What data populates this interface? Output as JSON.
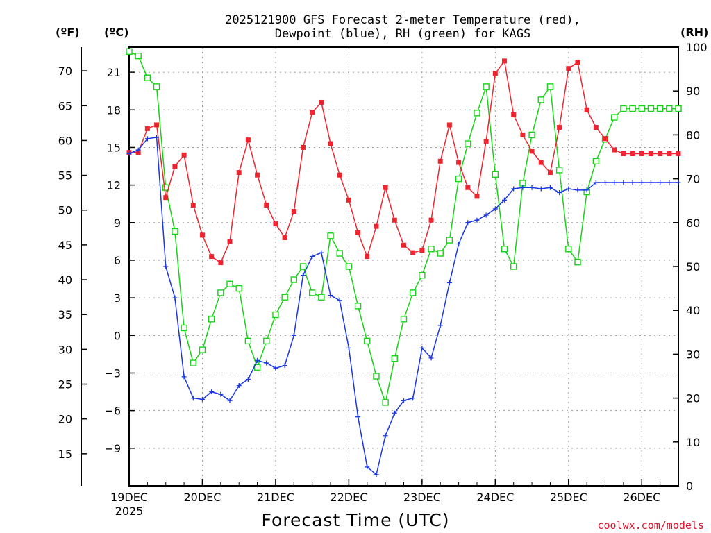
{
  "chart_data": {
    "type": "line",
    "title_line1": "2025121900 GFS Forecast 2-meter Temperature (red),",
    "title_line2": "Dewpoint (blue), RH (green) for KAGS",
    "xlabel": "Forecast Time (UTC)",
    "credit": "coolwx.com/models",
    "units": {
      "fahrenheit": "(ºF)",
      "celsius": "(ºC)",
      "rh": "(RH)"
    },
    "x_ticks": [
      "19DEC",
      "20DEC",
      "21DEC",
      "22DEC",
      "23DEC",
      "24DEC",
      "25DEC",
      "26DEC"
    ],
    "x_year": "2025",
    "xlim_hours": [
      0,
      180
    ],
    "celsius_ticks": [
      "21",
      "18",
      "15",
      "12",
      "9",
      "6",
      "3",
      "0",
      "−3",
      "−6",
      "−9"
    ],
    "fahrenheit_ticks": [
      "70",
      "65",
      "60",
      "55",
      "50",
      "45",
      "40",
      "35",
      "30",
      "25",
      "20",
      "15"
    ],
    "rh_ticks": [
      "100",
      "90",
      "80",
      "70",
      "60",
      "50",
      "40",
      "30",
      "20",
      "10",
      "0"
    ],
    "ylim_celsius": [
      -12,
      23
    ],
    "ylim_rh": [
      0,
      100
    ],
    "colors": {
      "temperature": "#f0242f",
      "dewpoint": "#1a37e6",
      "rh": "#14d414",
      "credit": "#e0102a"
    },
    "series": [
      {
        "name": "2-meter Temperature (°C)",
        "hours": [
          0,
          3,
          6,
          9,
          12,
          15,
          18,
          21,
          24,
          27,
          30,
          33,
          36,
          39,
          42,
          45,
          48,
          51,
          54,
          57,
          60,
          63,
          66,
          69,
          72,
          75,
          78,
          81,
          84,
          87,
          90,
          93,
          96,
          99,
          102,
          105,
          108,
          111,
          114,
          117,
          120,
          123,
          126,
          129,
          132,
          135,
          138,
          141,
          144,
          147,
          150,
          153,
          156,
          159,
          162,
          165,
          168,
          171,
          174,
          177,
          180
        ],
        "values": [
          14.6,
          14.6,
          16.5,
          16.8,
          11.0,
          13.5,
          14.4,
          10.4,
          8.0,
          6.3,
          5.8,
          7.5,
          13.0,
          15.6,
          12.8,
          10.4,
          8.9,
          7.8,
          9.9,
          15.0,
          17.8,
          18.6,
          15.3,
          12.8,
          10.8,
          8.2,
          6.3,
          8.7,
          11.8,
          9.2,
          7.2,
          6.6,
          6.8,
          9.2,
          13.9,
          16.8,
          13.8,
          11.8,
          11.1,
          15.5,
          20.9,
          21.9,
          17.6,
          16.0,
          14.7,
          13.8,
          13.0,
          16.6,
          21.3,
          21.8,
          18.0,
          16.6,
          15.7,
          14.8,
          14.5,
          14.5,
          14.5,
          14.5,
          14.5,
          14.5,
          14.5
        ]
      },
      {
        "name": "Dewpoint (°C)",
        "hours": [
          0,
          3,
          6,
          9,
          12,
          15,
          18,
          21,
          24,
          27,
          30,
          33,
          36,
          39,
          42,
          45,
          48,
          51,
          54,
          57,
          60,
          63,
          66,
          69,
          72,
          75,
          78,
          81,
          84,
          87,
          90,
          93,
          96,
          99,
          102,
          105,
          108,
          111,
          114,
          117,
          120,
          123,
          126,
          129,
          132,
          135,
          138,
          141,
          144,
          147,
          150,
          153,
          156,
          159,
          162,
          165,
          168,
          171,
          174,
          177,
          180
        ],
        "values": [
          14.5,
          14.8,
          15.7,
          15.8,
          5.5,
          3.0,
          -3.3,
          -5.0,
          -5.1,
          -4.5,
          -4.7,
          -5.2,
          -4.0,
          -3.5,
          -2.0,
          -2.2,
          -2.6,
          -2.4,
          0.0,
          4.8,
          6.3,
          6.6,
          3.2,
          2.8,
          -1.0,
          -6.5,
          -10.5,
          -11.1,
          -8.0,
          -6.2,
          -5.2,
          -5.0,
          -1.0,
          -1.8,
          0.8,
          4.2,
          7.3,
          9.0,
          9.2,
          9.6,
          10.1,
          10.8,
          11.7,
          11.8,
          11.8,
          11.7,
          11.8,
          11.4,
          11.7,
          11.6,
          11.6,
          12.2,
          12.2,
          12.2,
          12.2,
          12.2,
          12.2,
          12.2,
          12.2,
          12.2,
          12.2
        ]
      },
      {
        "name": "Relative Humidity (%)",
        "hours": [
          0,
          3,
          6,
          9,
          12,
          15,
          18,
          21,
          24,
          27,
          30,
          33,
          36,
          39,
          42,
          45,
          48,
          51,
          54,
          57,
          60,
          63,
          66,
          69,
          72,
          75,
          78,
          81,
          84,
          87,
          90,
          93,
          96,
          99,
          102,
          105,
          108,
          111,
          114,
          117,
          120,
          123,
          126,
          129,
          132,
          135,
          138,
          141,
          144,
          147,
          150,
          153,
          156,
          159,
          162,
          165,
          168,
          171,
          174,
          177,
          180
        ],
        "values": [
          99,
          98,
          93,
          91,
          68,
          58,
          36,
          28,
          31,
          38,
          44,
          46,
          45,
          33,
          27,
          33,
          39,
          43,
          47,
          50,
          44,
          43,
          57,
          53,
          50,
          41,
          33,
          25,
          19,
          29,
          38,
          44,
          48,
          54,
          53,
          56,
          70,
          78,
          85,
          91,
          71,
          54,
          50,
          69,
          80,
          88,
          91,
          72,
          54,
          51,
          67,
          74,
          79,
          84,
          86,
          86,
          86,
          86,
          86,
          86,
          86
        ]
      }
    ]
  }
}
